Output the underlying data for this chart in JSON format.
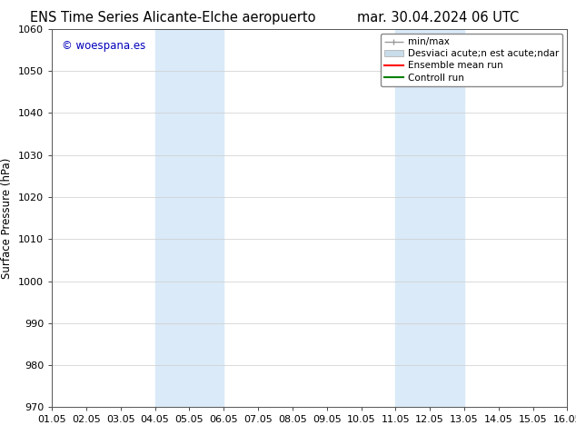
{
  "title_left": "ENS Time Series Alicante-Elche aeropuerto",
  "title_right": "mar. 30.04.2024 06 UTC",
  "ylabel": "Surface Pressure (hPa)",
  "ylim": [
    970,
    1060
  ],
  "yticks": [
    970,
    980,
    990,
    1000,
    1010,
    1020,
    1030,
    1040,
    1050,
    1060
  ],
  "xlim_start": 0,
  "xlim_end": 15,
  "xtick_labels": [
    "01.05",
    "02.05",
    "03.05",
    "04.05",
    "05.05",
    "06.05",
    "07.05",
    "08.05",
    "09.05",
    "10.05",
    "11.05",
    "12.05",
    "13.05",
    "14.05",
    "15.05",
    "16.05"
  ],
  "xtick_positions": [
    0,
    1,
    2,
    3,
    4,
    5,
    6,
    7,
    8,
    9,
    10,
    11,
    12,
    13,
    14,
    15
  ],
  "shaded_bands": [
    {
      "x_start": 3,
      "x_end": 5,
      "color": "#daeaf8"
    },
    {
      "x_start": 10,
      "x_end": 12,
      "color": "#daeaf8"
    }
  ],
  "watermark_text": "© woespana.es",
  "watermark_color": "#0000bb",
  "legend_label_minmax": "min/max",
  "legend_label_std": "Desviaci acute;n est acute;ndar",
  "legend_label_ensemble": "Ensemble mean run",
  "legend_label_control": "Controll run",
  "legend_color_minmax": "#999999",
  "legend_color_std": "#c8dcea",
  "legend_color_ensemble": "#ff0000",
  "legend_color_control": "#008000",
  "background_color": "#ffffff",
  "grid_color": "#cccccc",
  "title_fontsize": 10.5,
  "axis_label_fontsize": 8.5,
  "tick_fontsize": 8,
  "legend_fontsize": 7.5,
  "watermark_fontsize": 8.5
}
